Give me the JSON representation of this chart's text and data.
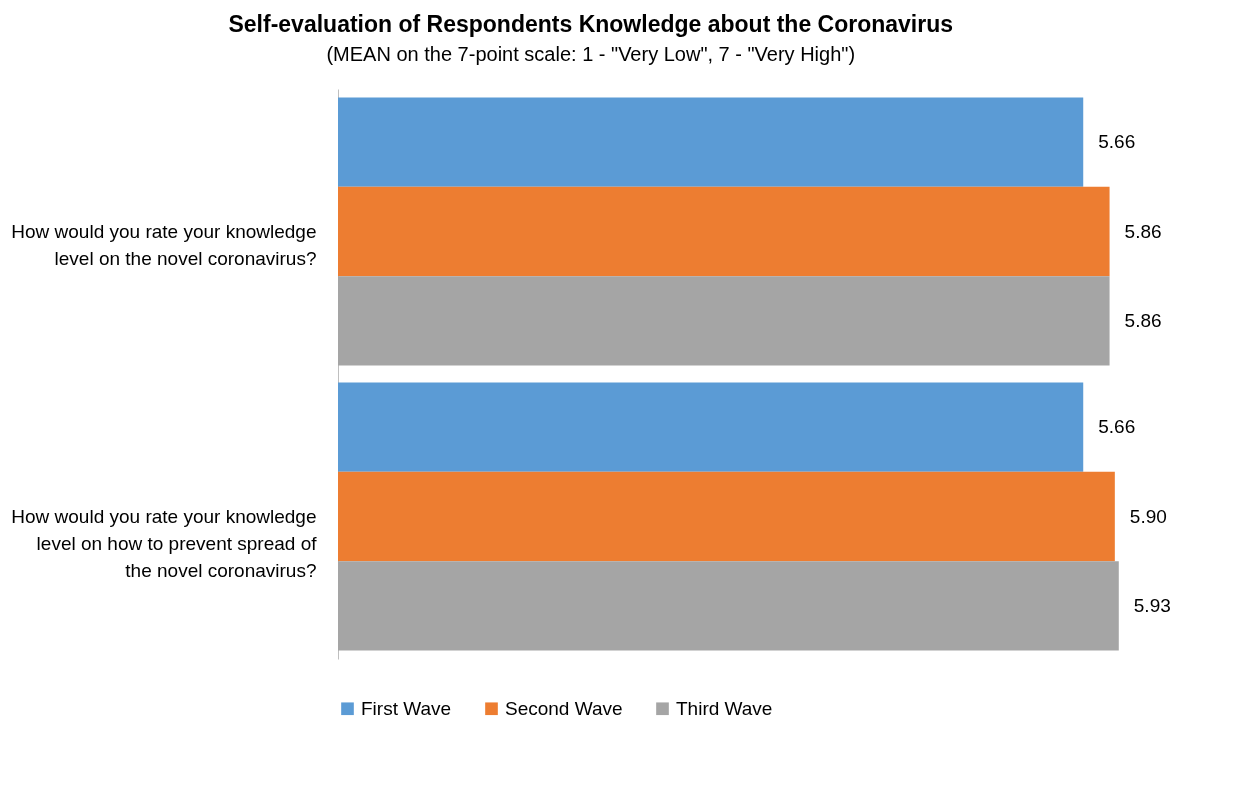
{
  "chart_data": {
    "type": "bar",
    "orientation": "horizontal",
    "title": "Self-evaluation of Respondents Knowledge about the Coronavirus",
    "subtitle": "(MEAN on the 7-point scale: 1 - \"Very Low\", 7 - \"Very High\")",
    "categories": [
      "How would you rate your knowledge level on the novel coronavirus?",
      "How would you rate your knowledge level on how to prevent spread of the novel coronavirus?"
    ],
    "series": [
      {
        "name": "First Wave",
        "color": "#5b9bd5",
        "values": [
          5.66,
          5.66
        ],
        "value_labels": [
          "5.66",
          "5.66"
        ]
      },
      {
        "name": "Second Wave",
        "color": "#ed7d31",
        "values": [
          5.86,
          5.9
        ],
        "value_labels": [
          "5.86",
          "5.90"
        ]
      },
      {
        "name": "Third Wave",
        "color": "#a5a5a5",
        "values": [
          5.86,
          5.93
        ],
        "value_labels": [
          "5.86",
          "5.93"
        ]
      }
    ],
    "legend": "bottom"
  }
}
